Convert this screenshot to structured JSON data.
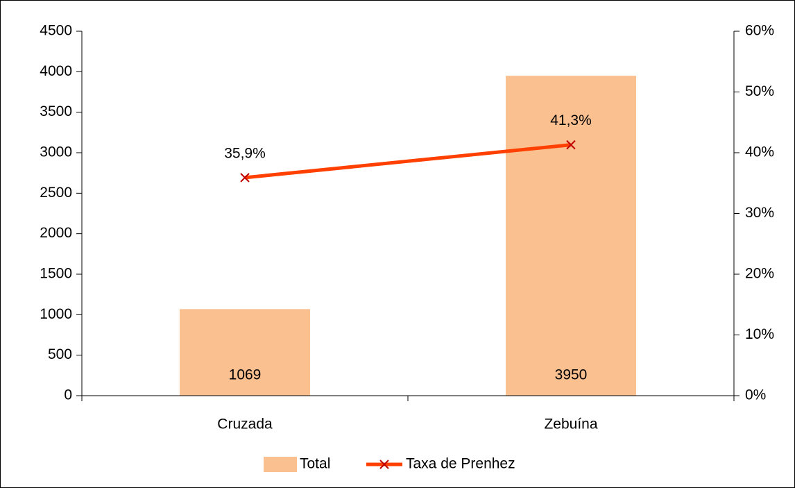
{
  "chart_data": {
    "type": "bar",
    "categories": [
      "Cruzada",
      "Zebuína"
    ],
    "series": [
      {
        "name": "Total",
        "type": "bar",
        "color": "#fac090",
        "values": [
          1069,
          3950
        ]
      },
      {
        "name": "Taxa de Prenhez",
        "type": "line",
        "axis": "y2",
        "color": "#ff4000",
        "marker_color": "#c00000",
        "values": [
          35.9,
          41.3
        ],
        "value_labels": [
          "35,9%",
          "41,3%"
        ]
      }
    ],
    "ylim": [
      0,
      4500
    ],
    "yticks": [
      0,
      500,
      1000,
      1500,
      2000,
      2500,
      3000,
      3500,
      4000,
      4500
    ],
    "y2lim": [
      0,
      60
    ],
    "y2ticks": [
      {
        "value": 0,
        "label": "0%"
      },
      {
        "value": 10,
        "label": "10%"
      },
      {
        "value": 20,
        "label": "20%"
      },
      {
        "value": 30,
        "label": "30%"
      },
      {
        "value": 40,
        "label": "40%"
      },
      {
        "value": 50,
        "label": "50%"
      },
      {
        "value": 60,
        "label": "60%"
      }
    ],
    "grid": false,
    "legend": "bottom"
  }
}
